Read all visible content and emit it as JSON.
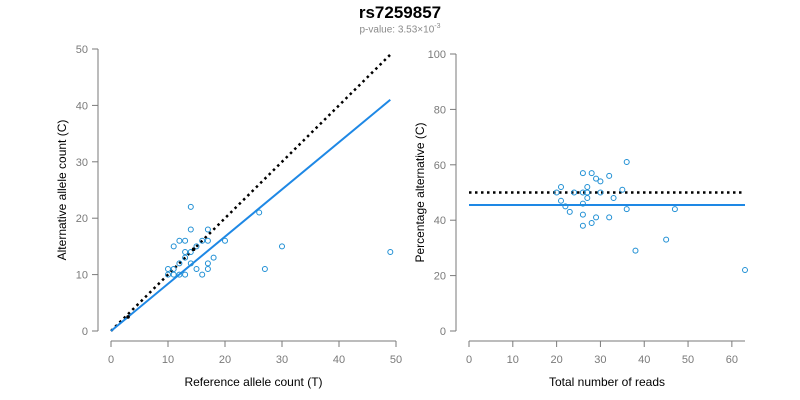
{
  "header": {
    "title": "rs7259857",
    "pvalue_text": "p-value: 3.53×10",
    "pvalue_exp": "-3"
  },
  "colors": {
    "points": "#1f8fd4",
    "fit_line": "#1e88e5",
    "reference_line": "#000000",
    "axis": "#7a7a7a"
  },
  "chart_data": [
    {
      "type": "scatter",
      "title": "",
      "xlabel": "Reference allele count (T)",
      "ylabel": "Alternative allele count (C)",
      "xlim": [
        0,
        50
      ],
      "ylim": [
        0,
        50
      ],
      "x_ticks": [
        "0",
        "10",
        "20",
        "30",
        "40",
        "50"
      ],
      "y_ticks": [
        "0",
        "10",
        "20",
        "30",
        "40",
        "50"
      ],
      "grid": false,
      "points": [
        [
          10,
          10
        ],
        [
          10,
          11
        ],
        [
          11,
          10
        ],
        [
          11,
          11
        ],
        [
          11,
          15
        ],
        [
          12,
          10
        ],
        [
          12,
          12
        ],
        [
          12,
          16
        ],
        [
          13,
          10
        ],
        [
          13,
          13
        ],
        [
          13,
          14
        ],
        [
          13,
          16
        ],
        [
          14,
          12
        ],
        [
          14,
          14
        ],
        [
          14,
          18
        ],
        [
          14,
          22
        ],
        [
          15,
          11
        ],
        [
          15,
          15
        ],
        [
          16,
          10
        ],
        [
          16,
          16
        ],
        [
          17,
          11
        ],
        [
          17,
          12
        ],
        [
          17,
          16
        ],
        [
          17,
          18
        ],
        [
          18,
          13
        ],
        [
          20,
          16
        ],
        [
          26,
          21
        ],
        [
          27,
          11
        ],
        [
          30,
          15
        ],
        [
          49,
          14
        ]
      ],
      "filled_points": [
        [
          3,
          2.5
        ],
        [
          14.5,
          14.5
        ]
      ],
      "reference_line": {
        "style": "dotted",
        "x": [
          0,
          49
        ],
        "y": [
          0,
          49
        ]
      },
      "fit_line": {
        "style": "solid",
        "x": [
          0,
          49
        ],
        "y": [
          0,
          41
        ]
      }
    },
    {
      "type": "scatter",
      "title": "",
      "xlabel": "Total number of reads",
      "ylabel": "Percentage alternative (C)",
      "xlim": [
        0,
        63
      ],
      "ylim": [
        0,
        100
      ],
      "x_ticks": [
        "0",
        "10",
        "20",
        "30",
        "40",
        "50",
        "60"
      ],
      "y_ticks": [
        "0",
        "20",
        "40",
        "60",
        "80",
        "100"
      ],
      "grid": false,
      "points": [
        [
          20,
          50
        ],
        [
          21,
          52
        ],
        [
          21,
          47
        ],
        [
          22,
          45
        ],
        [
          23,
          43
        ],
        [
          24,
          50
        ],
        [
          26,
          50
        ],
        [
          26,
          46
        ],
        [
          26,
          42
        ],
        [
          26,
          38
        ],
        [
          26,
          57
        ],
        [
          27,
          52
        ],
        [
          27,
          50
        ],
        [
          27,
          48
        ],
        [
          28,
          57
        ],
        [
          28,
          39
        ],
        [
          29,
          55
        ],
        [
          29,
          41
        ],
        [
          30,
          50
        ],
        [
          30,
          54
        ],
        [
          32,
          41
        ],
        [
          32,
          56
        ],
        [
          33,
          48
        ],
        [
          35,
          51
        ],
        [
          36,
          61
        ],
        [
          36,
          44
        ],
        [
          38,
          29
        ],
        [
          45,
          33
        ],
        [
          47,
          44
        ],
        [
          63,
          22
        ]
      ],
      "reference_line": {
        "style": "dotted",
        "y": 50
      },
      "fit_line": {
        "style": "solid",
        "y": 45.5
      }
    }
  ]
}
